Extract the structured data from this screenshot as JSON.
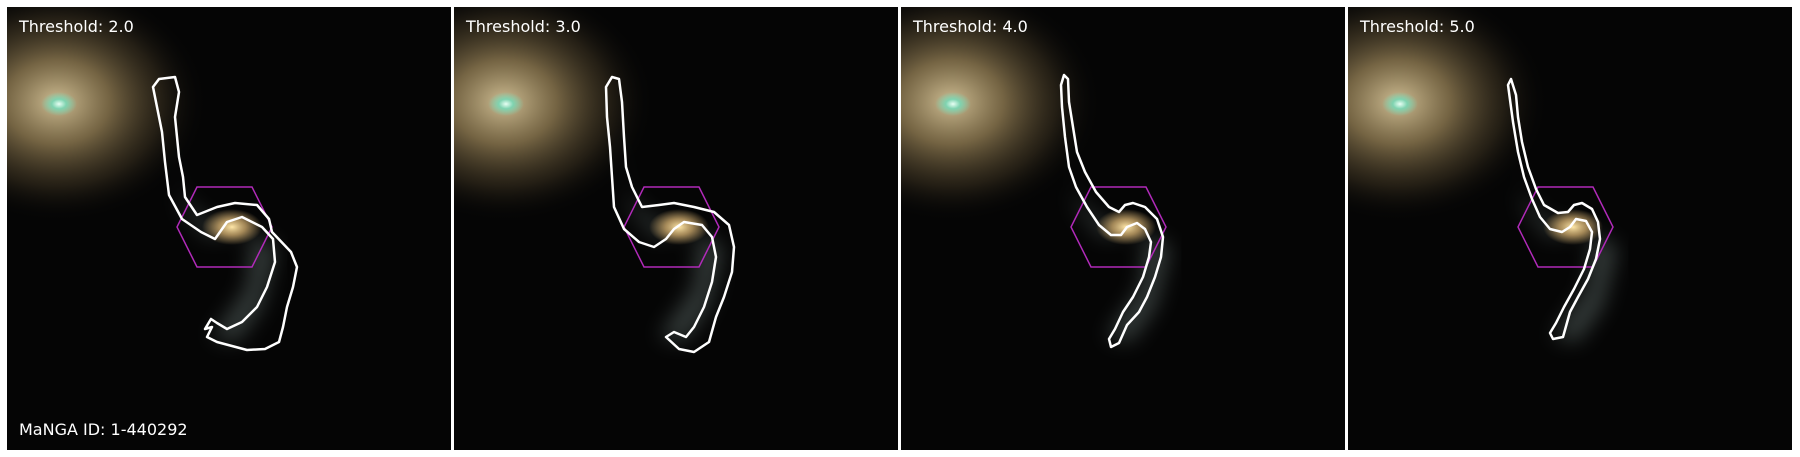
{
  "panels": [
    {
      "label": "Threshold: 2.0"
    },
    {
      "label": "Threshold: 3.0"
    },
    {
      "label": "Threshold: 4.0"
    },
    {
      "label": "Threshold: 5.0"
    }
  ],
  "manga_id": "MaNGA ID: 1-440292",
  "colors": {
    "contour": "#ffffff",
    "hexagon": "#b02ab8",
    "background": "#050505"
  }
}
